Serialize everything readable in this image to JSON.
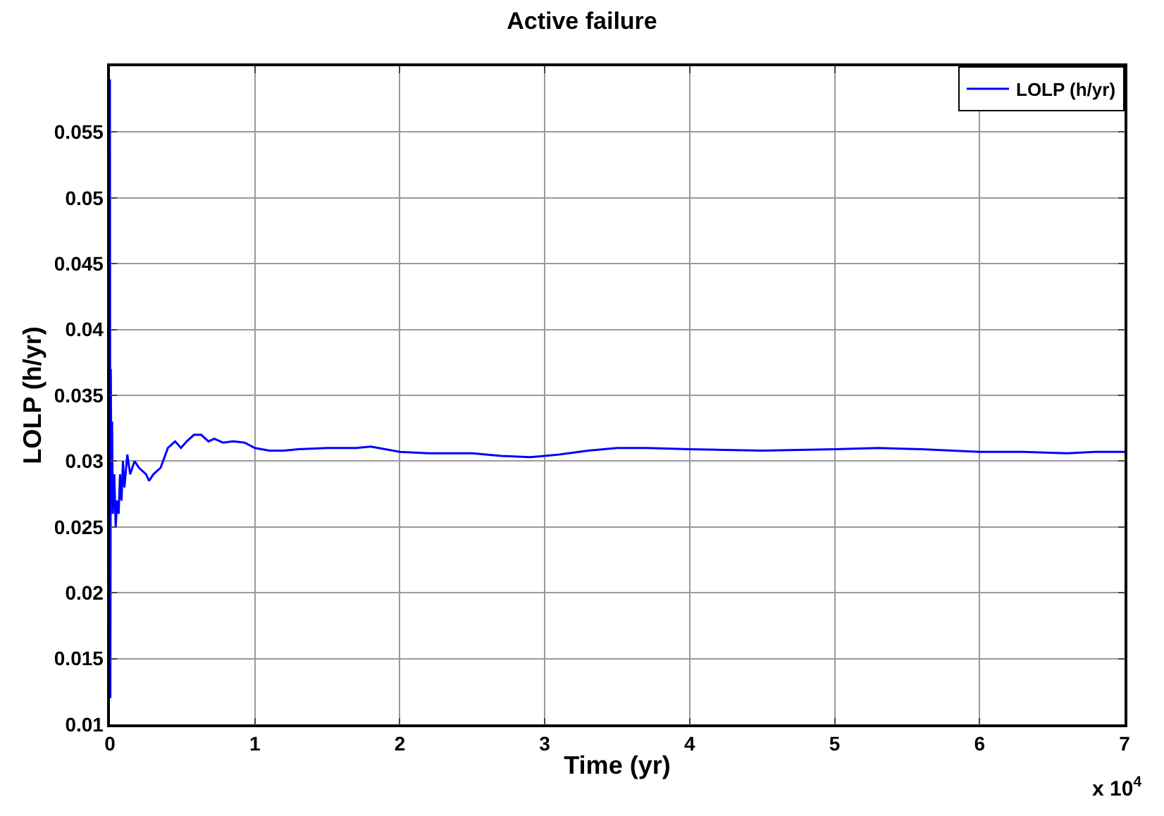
{
  "chart_data": {
    "type": "line",
    "title": "Active failure",
    "xlabel": "Time (yr)",
    "ylabel": "LOLP (h/yr)",
    "annotations": [
      "x 10$^{4}$"
    ],
    "xlim": [
      0,
      7
    ],
    "xticks": [
      0,
      1,
      2,
      3,
      4,
      5,
      6,
      7
    ],
    "ylim": [
      0.01,
      0.06
    ],
    "yticks": [
      0.01,
      0.015,
      0.02,
      0.025,
      0.03,
      0.035,
      0.04,
      0.045,
      0.05,
      0.055
    ],
    "grid": true,
    "legend": "top right",
    "line_style": "solid",
    "series": [
      {
        "name": "LOLP (h/yr)",
        "color": "#0000ff",
        "x": [
          0,
          0.003,
          0.006,
          0.01,
          0.015,
          0.02,
          0.03,
          0.04,
          0.05,
          0.06,
          0.07,
          0.08,
          0.09,
          0.1,
          0.12,
          0.14,
          0.17,
          0.2,
          0.25,
          0.27,
          0.3,
          0.35,
          0.4,
          0.45,
          0.49,
          0.53,
          0.58,
          0.63,
          0.68,
          0.72,
          0.78,
          0.85,
          0.93,
          1.0,
          1.1,
          1.2,
          1.3,
          1.5,
          1.7,
          1.8,
          1.9,
          2.0,
          2.2,
          2.5,
          2.7,
          2.9,
          3.1,
          3.3,
          3.5,
          3.7,
          4.0,
          4.5,
          5.0,
          5.3,
          5.6,
          6.0,
          6.3,
          6.6,
          6.8,
          7.0
        ],
        "values": [
          0.059,
          0.012,
          0.037,
          0.028,
          0.033,
          0.026,
          0.029,
          0.025,
          0.027,
          0.026,
          0.029,
          0.027,
          0.03,
          0.028,
          0.0305,
          0.029,
          0.03,
          0.0295,
          0.029,
          0.0285,
          0.029,
          0.0295,
          0.031,
          0.0315,
          0.031,
          0.0315,
          0.032,
          0.032,
          0.0315,
          0.0317,
          0.0314,
          0.0315,
          0.0314,
          0.031,
          0.0308,
          0.0308,
          0.0309,
          0.031,
          0.031,
          0.0311,
          0.0309,
          0.0307,
          0.0306,
          0.0306,
          0.0304,
          0.0303,
          0.0305,
          0.0308,
          0.031,
          0.031,
          0.0309,
          0.0308,
          0.0309,
          0.031,
          0.0309,
          0.0307,
          0.0307,
          0.0306,
          0.0307,
          0.0307
        ]
      }
    ]
  }
}
